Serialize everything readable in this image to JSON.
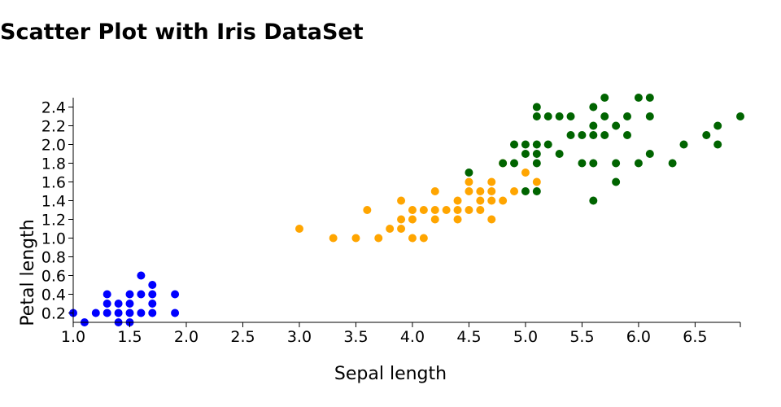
{
  "chart_data": {
    "type": "scatter",
    "title": "Scatter Plot with Iris DataSet",
    "xlabel": "Sepal length",
    "ylabel": "Petal length",
    "xlim": [
      1.0,
      6.9
    ],
    "ylim": [
      0.1,
      2.5
    ],
    "xticks": [
      "1.0",
      "1.5",
      "2.0",
      "2.5",
      "3.0",
      "3.5",
      "4.0",
      "4.5",
      "5.0",
      "5.5",
      "6.0",
      "6.5"
    ],
    "yticks": [
      "0.2",
      "0.4",
      "0.6",
      "0.8",
      "1.0",
      "1.2",
      "1.4",
      "1.6",
      "1.8",
      "2.0",
      "2.2",
      "2.4"
    ],
    "grid": false,
    "series": [
      {
        "color": "#0000ff",
        "points": [
          [
            1.0,
            0.2
          ],
          [
            1.1,
            0.1
          ],
          [
            1.2,
            0.2
          ],
          [
            1.3,
            0.2
          ],
          [
            1.3,
            0.3
          ],
          [
            1.3,
            0.4
          ],
          [
            1.4,
            0.1
          ],
          [
            1.4,
            0.2
          ],
          [
            1.4,
            0.3
          ],
          [
            1.5,
            0.1
          ],
          [
            1.5,
            0.2
          ],
          [
            1.5,
            0.3
          ],
          [
            1.5,
            0.4
          ],
          [
            1.6,
            0.2
          ],
          [
            1.6,
            0.4
          ],
          [
            1.6,
            0.6
          ],
          [
            1.7,
            0.2
          ],
          [
            1.7,
            0.3
          ],
          [
            1.7,
            0.4
          ],
          [
            1.7,
            0.5
          ],
          [
            1.9,
            0.2
          ],
          [
            1.9,
            0.4
          ]
        ]
      },
      {
        "color": "#ffa500",
        "points": [
          [
            3.0,
            1.1
          ],
          [
            3.3,
            1.0
          ],
          [
            3.5,
            1.0
          ],
          [
            3.6,
            1.3
          ],
          [
            3.7,
            1.0
          ],
          [
            3.8,
            1.1
          ],
          [
            3.9,
            1.1
          ],
          [
            3.9,
            1.2
          ],
          [
            3.9,
            1.4
          ],
          [
            4.0,
            1.0
          ],
          [
            4.0,
            1.2
          ],
          [
            4.0,
            1.3
          ],
          [
            4.1,
            1.0
          ],
          [
            4.1,
            1.3
          ],
          [
            4.2,
            1.2
          ],
          [
            4.2,
            1.3
          ],
          [
            4.2,
            1.5
          ],
          [
            4.3,
            1.3
          ],
          [
            4.4,
            1.2
          ],
          [
            4.4,
            1.3
          ],
          [
            4.4,
            1.4
          ],
          [
            4.5,
            1.3
          ],
          [
            4.5,
            1.5
          ],
          [
            4.5,
            1.6
          ],
          [
            4.6,
            1.3
          ],
          [
            4.6,
            1.4
          ],
          [
            4.6,
            1.5
          ],
          [
            4.7,
            1.2
          ],
          [
            4.7,
            1.4
          ],
          [
            4.7,
            1.5
          ],
          [
            4.7,
            1.6
          ],
          [
            4.8,
            1.4
          ],
          [
            4.8,
            1.8
          ],
          [
            4.9,
            1.5
          ],
          [
            5.0,
            1.7
          ],
          [
            5.1,
            1.6
          ]
        ]
      },
      {
        "color": "#006400",
        "points": [
          [
            4.5,
            1.7
          ],
          [
            4.8,
            1.8
          ],
          [
            4.9,
            1.8
          ],
          [
            4.9,
            2.0
          ],
          [
            5.0,
            1.5
          ],
          [
            5.0,
            1.9
          ],
          [
            5.0,
            2.0
          ],
          [
            5.1,
            1.5
          ],
          [
            5.1,
            1.8
          ],
          [
            5.1,
            1.9
          ],
          [
            5.1,
            2.0
          ],
          [
            5.1,
            2.3
          ],
          [
            5.1,
            2.4
          ],
          [
            5.2,
            2.0
          ],
          [
            5.2,
            2.3
          ],
          [
            5.3,
            1.9
          ],
          [
            5.3,
            2.3
          ],
          [
            5.4,
            2.1
          ],
          [
            5.4,
            2.3
          ],
          [
            5.5,
            1.8
          ],
          [
            5.5,
            2.1
          ],
          [
            5.6,
            1.4
          ],
          [
            5.6,
            1.8
          ],
          [
            5.6,
            2.1
          ],
          [
            5.6,
            2.2
          ],
          [
            5.6,
            2.4
          ],
          [
            5.7,
            2.1
          ],
          [
            5.7,
            2.3
          ],
          [
            5.7,
            2.5
          ],
          [
            5.8,
            1.6
          ],
          [
            5.8,
            1.8
          ],
          [
            5.8,
            2.2
          ],
          [
            5.9,
            2.1
          ],
          [
            5.9,
            2.3
          ],
          [
            6.0,
            1.8
          ],
          [
            6.0,
            2.5
          ],
          [
            6.1,
            1.9
          ],
          [
            6.1,
            2.3
          ],
          [
            6.1,
            2.5
          ],
          [
            6.3,
            1.8
          ],
          [
            6.4,
            2.0
          ],
          [
            6.6,
            2.1
          ],
          [
            6.7,
            2.0
          ],
          [
            6.7,
            2.2
          ],
          [
            6.9,
            2.3
          ]
        ]
      }
    ]
  }
}
